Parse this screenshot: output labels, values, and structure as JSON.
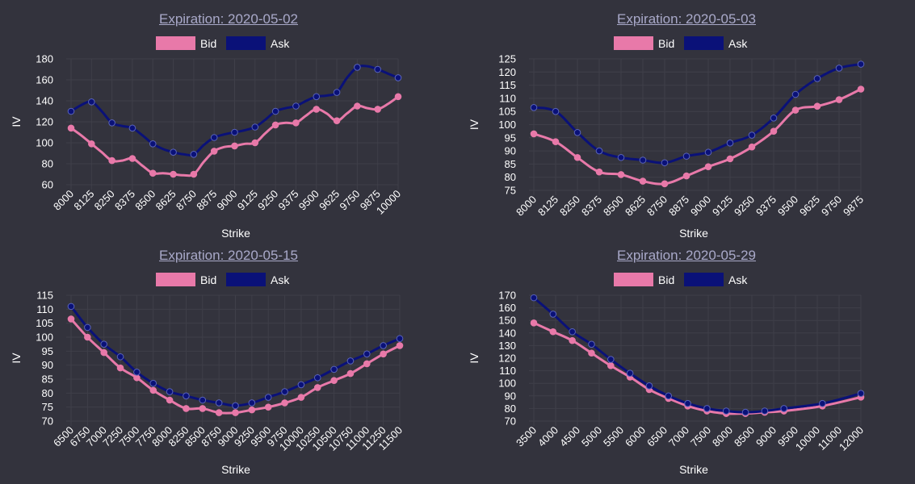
{
  "colors": {
    "background": "#33333d",
    "grid": "#3f3f49",
    "title": "#a9a9c9",
    "bid": "#e879a9",
    "ask": "#0a1178"
  },
  "chart_data": [
    {
      "type": "line",
      "title": "Expiration: 2020-05-02",
      "xlabel": "Strike",
      "ylabel": "IV",
      "ylim": [
        60,
        180
      ],
      "yticks": [
        60,
        80,
        100,
        120,
        140,
        160,
        180
      ],
      "x": [
        8000,
        8062.5,
        8125,
        8187.5,
        8250,
        8312.5,
        8375,
        8437.5,
        8500,
        8562.5,
        8625,
        8687.5,
        8750,
        8812.5,
        8875,
        8937.5,
        9000,
        9062.5,
        9125,
        9187.5,
        9250,
        9312.5,
        9375,
        9437.5,
        9500,
        9562.5,
        9625,
        9687.5,
        9750,
        9812.5,
        9875,
        9937.5,
        10000
      ],
      "categories": [
        "8000",
        "8125",
        "8250",
        "8375",
        "8500",
        "8625",
        "8750",
        "8875",
        "9000",
        "9125",
        "9250",
        "9375",
        "9500",
        "9625",
        "9750",
        "9875",
        "10000"
      ],
      "legend": "top",
      "series": [
        {
          "name": "Bid",
          "color": "#e879a9",
          "values": [
            114,
            107,
            99,
            91,
            83,
            83,
            85,
            78,
            71,
            71,
            70,
            69,
            70,
            82,
            92,
            96,
            97,
            99,
            100,
            109,
            117,
            119,
            119,
            126,
            132,
            128,
            121,
            128,
            135,
            133,
            132,
            137,
            144
          ]
        },
        {
          "name": "Ask",
          "color": "#0a1178",
          "values": [
            130,
            136,
            139,
            130,
            119,
            116,
            114,
            107,
            99,
            94,
            91,
            89,
            89,
            98,
            105,
            108,
            110,
            112,
            115,
            122,
            130,
            133,
            135,
            140,
            144,
            145,
            148,
            162,
            172,
            173,
            170,
            166,
            162
          ]
        }
      ]
    },
    {
      "type": "line",
      "title": "Expiration: 2020-05-03",
      "xlabel": "Strike",
      "ylabel": "IV",
      "ylim": [
        75,
        125
      ],
      "yticks": [
        75,
        80,
        85,
        90,
        95,
        100,
        105,
        110,
        115,
        120,
        125
      ],
      "x": [
        8000,
        8125,
        8250,
        8375,
        8500,
        8625,
        8750,
        8875,
        9000,
        9125,
        9250,
        9375,
        9500,
        9625,
        9750,
        9875
      ],
      "categories": [
        "8000",
        "8125",
        "8250",
        "8375",
        "8500",
        "8625",
        "8750",
        "8875",
        "9000",
        "9125",
        "9250",
        "9375",
        "9500",
        "9625",
        "9750",
        "9875"
      ],
      "legend": "top",
      "series": [
        {
          "name": "Bid",
          "color": "#e879a9",
          "values": [
            96.5,
            93.5,
            87.5,
            82,
            81,
            78.5,
            77.5,
            80.5,
            84,
            87,
            91.5,
            97.5,
            105.5,
            107,
            109.5,
            113.5
          ]
        },
        {
          "name": "Ask",
          "color": "#0a1178",
          "values": [
            106.5,
            105,
            97,
            90,
            87.5,
            86.5,
            85.5,
            88,
            89.5,
            93,
            96,
            102.5,
            111.5,
            117.5,
            121.5,
            123
          ]
        }
      ]
    },
    {
      "type": "line",
      "title": "Expiration: 2020-05-15",
      "xlabel": "Strike",
      "ylabel": "IV",
      "ylim": [
        70,
        115
      ],
      "yticks": [
        70,
        75,
        80,
        85,
        90,
        95,
        100,
        105,
        110,
        115
      ],
      "x": [
        6500,
        6750,
        7000,
        7250,
        7500,
        7750,
        8000,
        8250,
        8500,
        8750,
        9000,
        9250,
        9500,
        9750,
        10000,
        10250,
        10500,
        10750,
        11000,
        11250,
        11500
      ],
      "categories": [
        "6500",
        "6750",
        "7000",
        "7250",
        "7500",
        "7750",
        "8000",
        "8250",
        "8500",
        "8750",
        "9000",
        "9250",
        "9500",
        "9750",
        "10000",
        "10250",
        "10500",
        "10750",
        "11000",
        "11250",
        "11500"
      ],
      "legend": "top",
      "series": [
        {
          "name": "Bid",
          "color": "#e879a9",
          "values": [
            106.5,
            100,
            94.5,
            89,
            85.5,
            81,
            77.5,
            74.5,
            74.5,
            73,
            73,
            74,
            75,
            76.5,
            78.5,
            82,
            84.5,
            87,
            90.5,
            94,
            97
          ]
        },
        {
          "name": "Ask",
          "color": "#0a1178",
          "values": [
            111,
            103.5,
            97.5,
            93,
            87.5,
            83.5,
            80.5,
            79,
            77.5,
            76.5,
            75.5,
            76.5,
            78.5,
            80.5,
            83,
            85.5,
            88.5,
            91.5,
            94,
            97,
            99.5
          ]
        }
      ]
    },
    {
      "type": "line",
      "title": "Expiration: 2020-05-29",
      "xlabel": "Strike",
      "ylabel": "IV",
      "ylim": [
        70,
        170
      ],
      "yticks": [
        70,
        80,
        90,
        100,
        110,
        120,
        130,
        140,
        150,
        160,
        170
      ],
      "x": [
        3500,
        4000,
        4500,
        5000,
        5500,
        6000,
        6500,
        7000,
        7500,
        8000,
        8500,
        9000,
        9500,
        10000,
        11000,
        12000
      ],
      "categories": [
        "3500",
        "4000",
        "4500",
        "5000",
        "5500",
        "6000",
        "6500",
        "7000",
        "7500",
        "8000",
        "8500",
        "9000",
        "9500",
        "10000",
        "11000",
        "12000"
      ],
      "legend": "top",
      "series": [
        {
          "name": "Bid",
          "color": "#e879a9",
          "values": [
            148,
            141,
            134,
            124,
            114,
            105,
            95,
            88,
            82,
            78,
            76,
            76,
            77,
            78,
            82,
            89
          ]
        },
        {
          "name": "Ask",
          "color": "#0a1178",
          "values": [
            168,
            155,
            141,
            131,
            119,
            108,
            98,
            90,
            84,
            80,
            78,
            77,
            78,
            80,
            84,
            92
          ]
        }
      ]
    }
  ]
}
